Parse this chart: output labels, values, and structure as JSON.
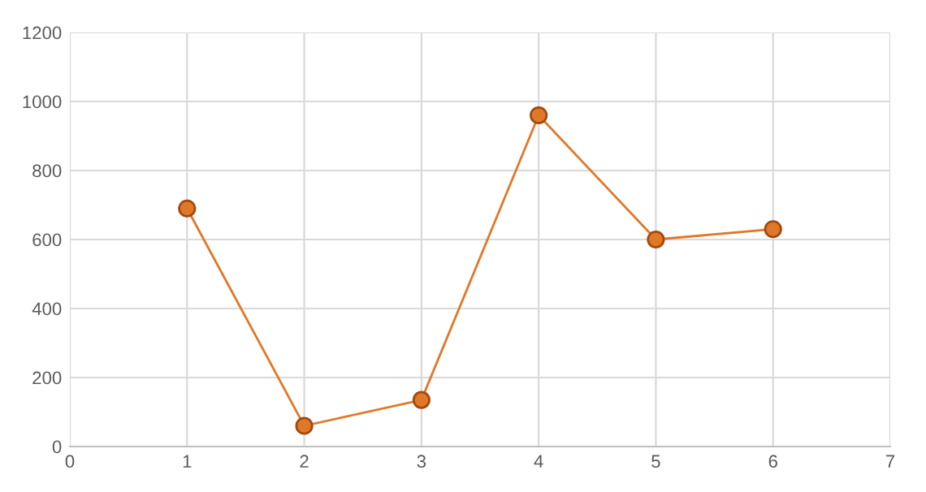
{
  "chart_data": {
    "type": "line",
    "x": [
      1,
      2,
      3,
      4,
      5,
      6
    ],
    "series": [
      {
        "color": "#e07828",
        "values": [
          690,
          60,
          135,
          960,
          600,
          630
        ]
      }
    ],
    "xlim": [
      0,
      7
    ],
    "xticks": [
      0,
      1,
      2,
      3,
      4,
      5,
      6,
      7
    ],
    "ylim": [
      0,
      1200
    ],
    "yticks": [
      0,
      200,
      400,
      600,
      800,
      1000,
      1200
    ],
    "grid": true,
    "marker": "circle",
    "line_style": "solid"
  }
}
